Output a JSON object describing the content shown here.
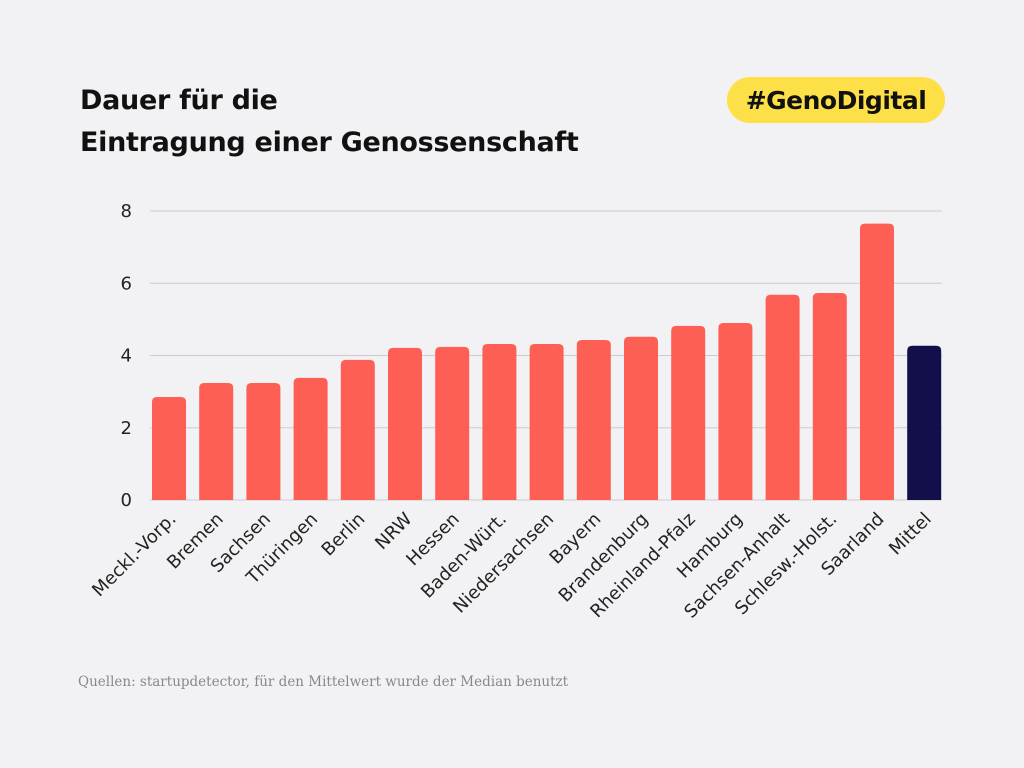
{
  "title_line1": "Dauer für die",
  "title_line2": "Eintragung einer Genossenschaft",
  "badge": "#GenoDigital",
  "source": "Quellen: startupdetector, für den Mittelwert wurde der Median benutzt",
  "colors": {
    "bar": "#fd5f55",
    "highlight": "#120f4a",
    "badge": "#fde047",
    "grid": "#cccccc"
  },
  "chart_data": {
    "type": "bar",
    "categories": [
      "Meckl.-Vorp.",
      "Bremen",
      "Sachsen",
      "Thüringen",
      "Berlin",
      "NRW",
      "Hessen",
      "Baden-Würt.",
      "Niedersachsen",
      "Bayern",
      "Brandenburg",
      "Rheinland-Pfalz",
      "Hamburg",
      "Sachsen-Anhalt",
      "Schlesw.-Holst.",
      "Saarland",
      "Mittel"
    ],
    "values": [
      2.85,
      3.24,
      3.24,
      3.38,
      3.88,
      4.21,
      4.24,
      4.32,
      4.32,
      4.43,
      4.52,
      4.82,
      4.9,
      5.68,
      5.73,
      7.65,
      4.27
    ],
    "highlight_category": "Mittel",
    "ylim": [
      0,
      8
    ],
    "yticks": [
      0,
      2,
      4,
      6,
      8
    ],
    "grid": true,
    "title": "Dauer für die Eintragung einer Genossenschaft",
    "xlabel": "",
    "ylabel": ""
  }
}
